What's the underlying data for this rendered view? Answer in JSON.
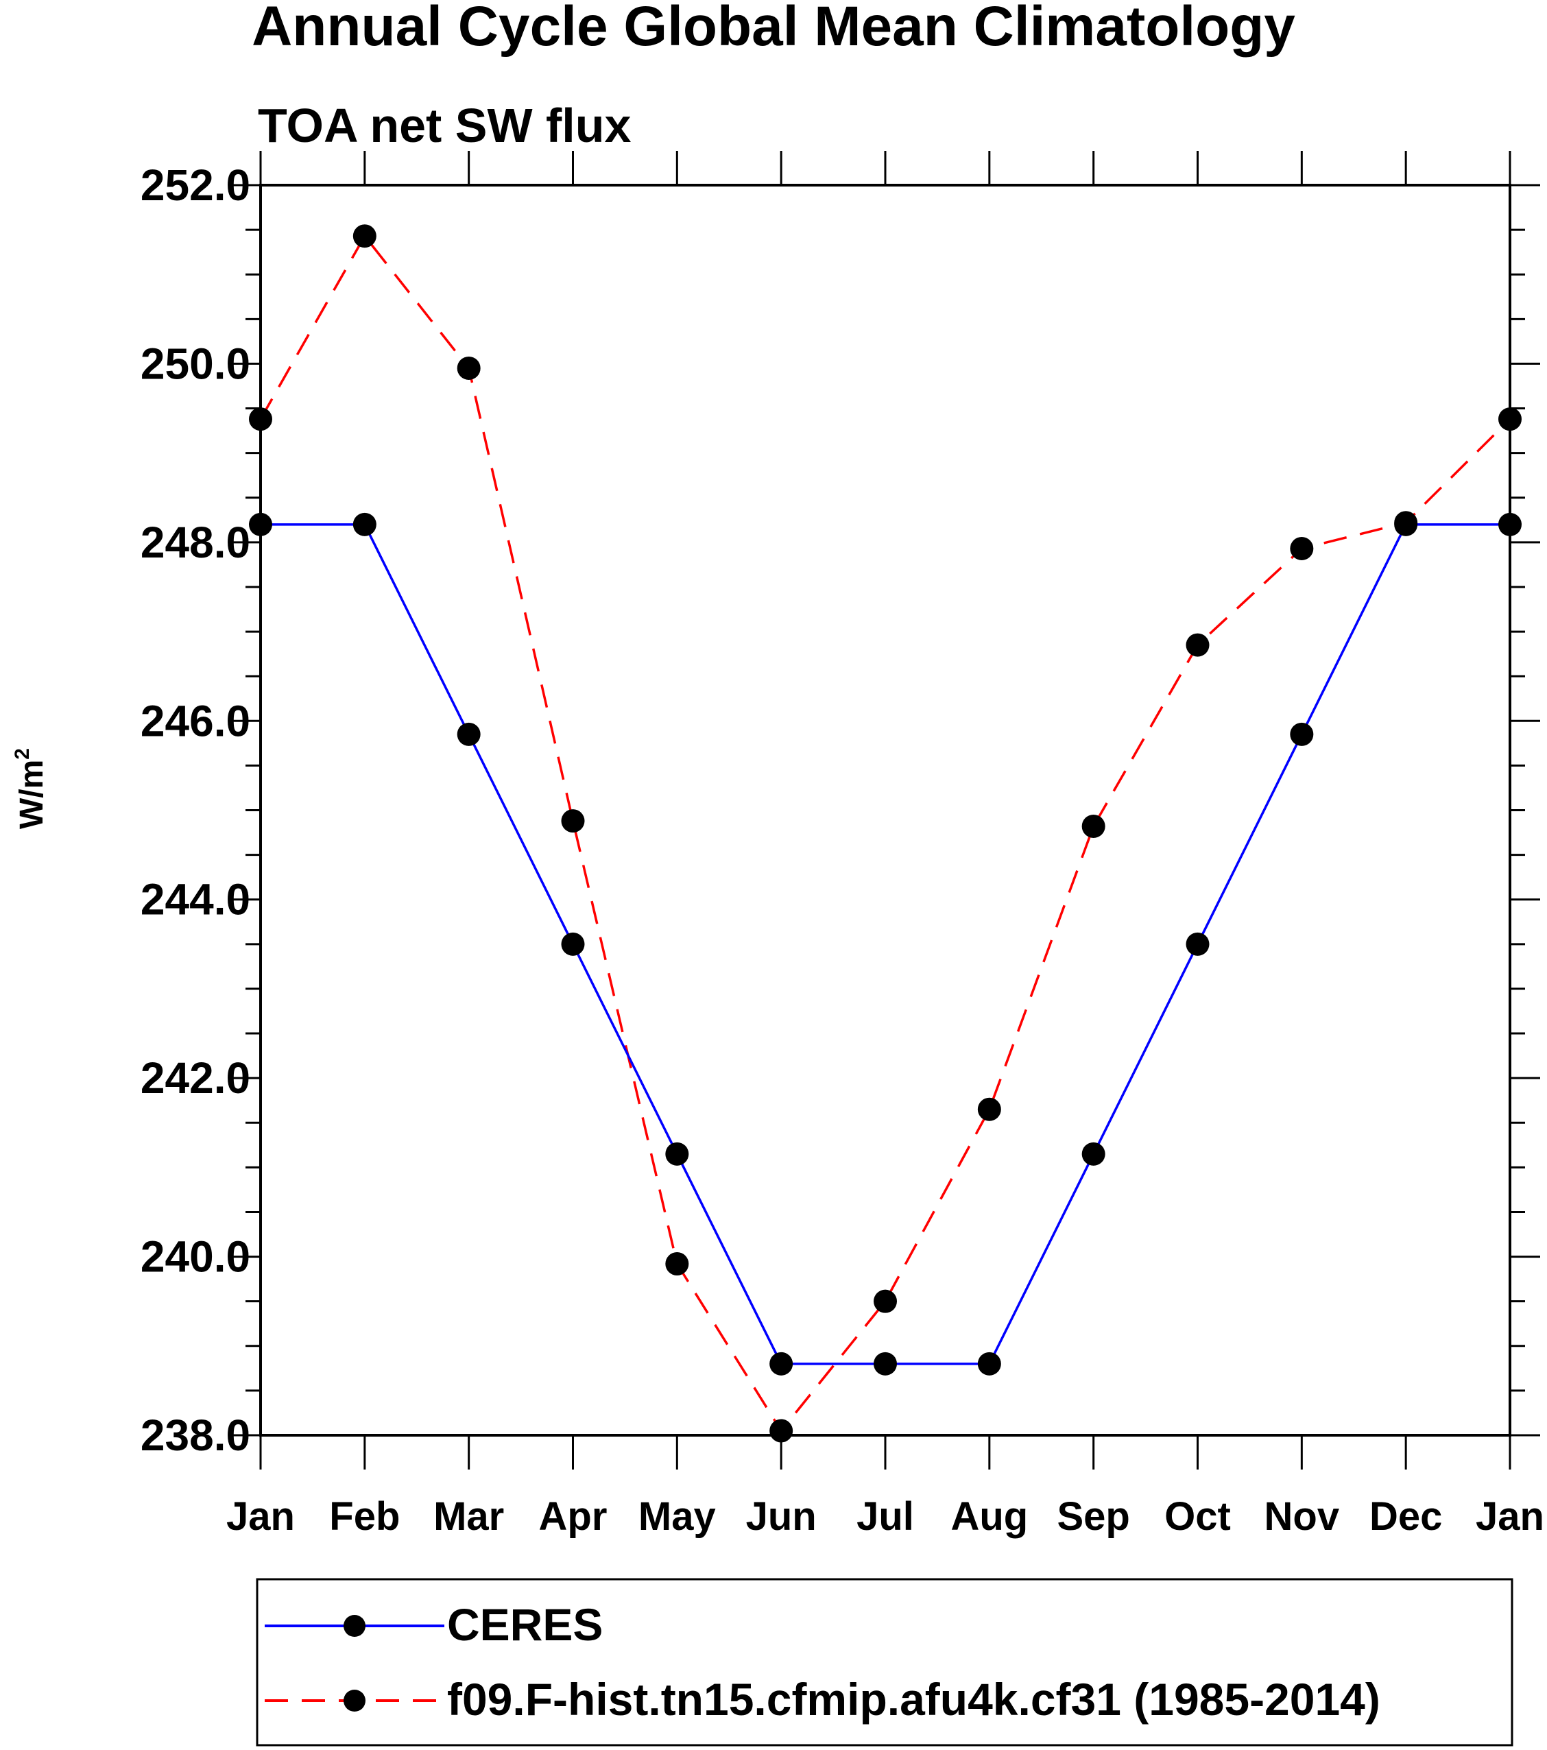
{
  "chart_data": {
    "type": "line",
    "title": "Annual Cycle Global Mean Climatology",
    "subtitle": "TOA net SW flux",
    "ylabel": "W/m",
    "ylabel_sup": "2",
    "xlabel": "",
    "categories": [
      "Jan",
      "Feb",
      "Mar",
      "Apr",
      "May",
      "Jun",
      "Jul",
      "Aug",
      "Sep",
      "Oct",
      "Nov",
      "Dec",
      "Jan"
    ],
    "ylim": [
      238.0,
      252.0
    ],
    "yticks": [
      "238.0",
      "240.0",
      "242.0",
      "244.0",
      "246.0",
      "248.0",
      "250.0",
      "252.0"
    ],
    "grid": false,
    "legend_position": "bottom",
    "series": [
      {
        "name": "CERES",
        "color": "#0000ff",
        "style": "solid",
        "values": [
          248.2,
          248.2,
          245.85,
          243.5,
          241.15,
          238.8,
          238.8,
          238.8,
          241.15,
          243.5,
          245.85,
          248.2,
          248.2
        ]
      },
      {
        "name": "f09.F-hist.tn15.cfmip.afu4k.cf31 (1985-2014)",
        "color": "#ff0000",
        "style": "dashed",
        "values": [
          249.38,
          251.43,
          249.95,
          244.88,
          239.92,
          238.05,
          239.5,
          241.65,
          244.82,
          246.85,
          247.93,
          248.22,
          249.38
        ]
      }
    ]
  }
}
